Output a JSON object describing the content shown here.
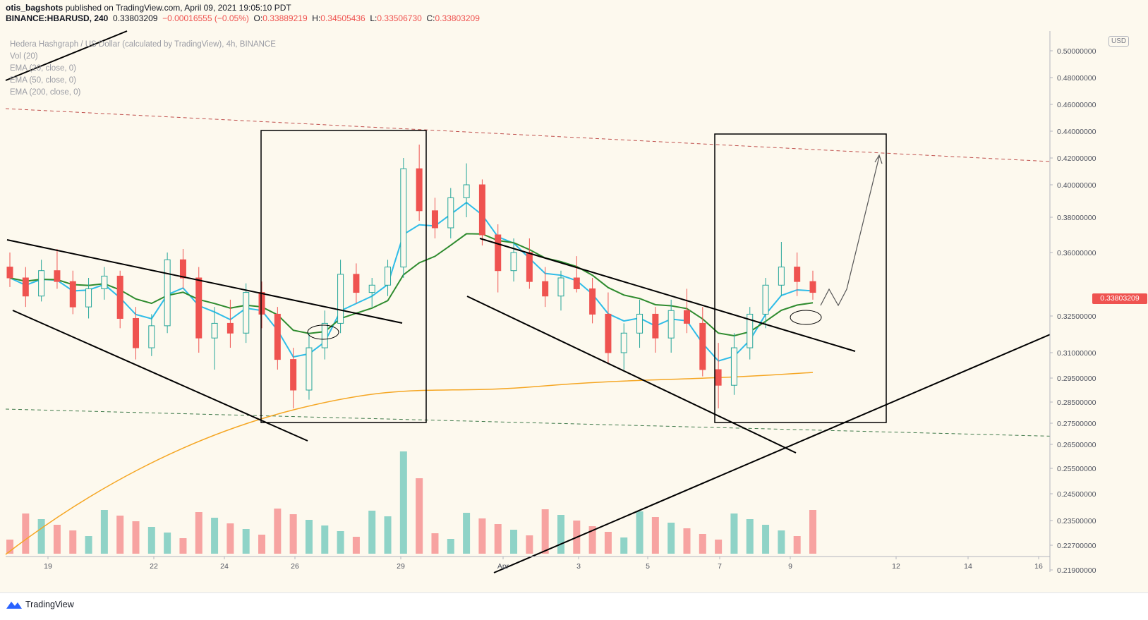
{
  "header": {
    "author": "otis_bagshots",
    "published": "published on TradingView.com, April 09, 2021 19:05:10 PDT",
    "symbol": "BINANCE:HBARUSD, 240",
    "last": "0.33803209",
    "change": "−0.00016555 (−0.05%)",
    "o_label": "O:",
    "o": "0.33889219",
    "h_label": "H:",
    "h": "0.34505436",
    "l_label": "L:",
    "l": "0.33506730",
    "c_label": "C:",
    "c": "0.33803209"
  },
  "legend": {
    "title": "Hedera Hashgraph / US Dollar (calculated by TradingView), 4h, BINANCE",
    "vol": "Vol (20)",
    "ema20": "EMA (20, close, 0)",
    "ema50": "EMA (50, close, 0)",
    "ema200": "EMA (200, close, 0)"
  },
  "currency": "USD",
  "price_tag": "0.33803209",
  "footer": {
    "brand": "TradingView"
  },
  "colors": {
    "up": "#26a69a",
    "down": "#ef5350",
    "ema20": "#2ebce8",
    "ema50": "#2e8b2e",
    "ema200": "#f5a623",
    "vol_up": "#8fd3c7",
    "vol_down": "#f7a3a1",
    "background": "#fdf9ee"
  },
  "chart_data": {
    "type": "candlestick",
    "y_ticks": [
      "0.50000000",
      "0.48000000",
      "0.46000000",
      "0.44000000",
      "0.42000000",
      "0.40000000",
      "0.38000000",
      "0.36000000",
      "0.32500000",
      "0.31000000",
      "0.29500000",
      "0.28500000",
      "0.27500000",
      "0.26500000",
      "0.25500000",
      "0.24500000",
      "0.23500000",
      "0.22700000",
      "0.21900000"
    ],
    "x_ticks": [
      "19",
      "22",
      "24",
      "26",
      "29",
      "Apr",
      "3",
      "5",
      "7",
      "9",
      "12",
      "14",
      "16"
    ],
    "last_price": 0.33803209,
    "ohlc_sample": [
      [
        0.352,
        0.36,
        0.341,
        0.346
      ],
      [
        0.346,
        0.352,
        0.33,
        0.336
      ],
      [
        0.336,
        0.356,
        0.333,
        0.35
      ],
      [
        0.35,
        0.362,
        0.34,
        0.344
      ],
      [
        0.344,
        0.35,
        0.326,
        0.33
      ],
      [
        0.33,
        0.346,
        0.324,
        0.34
      ],
      [
        0.34,
        0.352,
        0.334,
        0.347
      ],
      [
        0.347,
        0.35,
        0.32,
        0.324
      ],
      [
        0.324,
        0.33,
        0.306,
        0.312
      ],
      [
        0.312,
        0.326,
        0.308,
        0.321
      ],
      [
        0.321,
        0.36,
        0.318,
        0.356
      ],
      [
        0.356,
        0.362,
        0.34,
        0.346
      ],
      [
        0.346,
        0.352,
        0.31,
        0.316
      ],
      [
        0.316,
        0.33,
        0.3,
        0.322
      ],
      [
        0.322,
        0.334,
        0.312,
        0.318
      ],
      [
        0.318,
        0.343,
        0.314,
        0.338
      ],
      [
        0.338,
        0.344,
        0.32,
        0.326
      ],
      [
        0.326,
        0.33,
        0.3,
        0.306
      ],
      [
        0.306,
        0.312,
        0.282,
        0.29
      ],
      [
        0.29,
        0.318,
        0.286,
        0.312
      ],
      [
        0.312,
        0.328,
        0.306,
        0.322
      ],
      [
        0.322,
        0.356,
        0.318,
        0.348
      ],
      [
        0.348,
        0.354,
        0.332,
        0.338
      ],
      [
        0.338,
        0.346,
        0.33,
        0.342
      ],
      [
        0.342,
        0.356,
        0.336,
        0.352
      ],
      [
        0.352,
        0.42,
        0.346,
        0.412
      ],
      [
        0.412,
        0.43,
        0.378,
        0.384
      ],
      [
        0.384,
        0.392,
        0.368,
        0.374
      ],
      [
        0.374,
        0.398,
        0.368,
        0.392
      ],
      [
        0.392,
        0.416,
        0.38,
        0.4
      ],
      [
        0.4,
        0.404,
        0.364,
        0.37
      ],
      [
        0.37,
        0.376,
        0.338,
        0.35
      ],
      [
        0.35,
        0.368,
        0.344,
        0.36
      ],
      [
        0.36,
        0.368,
        0.34,
        0.344
      ],
      [
        0.344,
        0.352,
        0.33,
        0.336
      ],
      [
        0.336,
        0.35,
        0.328,
        0.346
      ],
      [
        0.346,
        0.358,
        0.338,
        0.34
      ],
      [
        0.34,
        0.346,
        0.322,
        0.326
      ],
      [
        0.326,
        0.338,
        0.304,
        0.31
      ],
      [
        0.31,
        0.322,
        0.3,
        0.318
      ],
      [
        0.318,
        0.334,
        0.312,
        0.326
      ],
      [
        0.326,
        0.33,
        0.31,
        0.316
      ],
      [
        0.316,
        0.334,
        0.31,
        0.328
      ],
      [
        0.328,
        0.34,
        0.318,
        0.322
      ],
      [
        0.322,
        0.33,
        0.296,
        0.3
      ],
      [
        0.3,
        0.314,
        0.282,
        0.292
      ],
      [
        0.292,
        0.318,
        0.288,
        0.312
      ],
      [
        0.312,
        0.33,
        0.306,
        0.326
      ],
      [
        0.326,
        0.346,
        0.32,
        0.342
      ],
      [
        0.342,
        0.366,
        0.336,
        0.352
      ],
      [
        0.352,
        0.36,
        0.336,
        0.344
      ],
      [
        0.344,
        0.35,
        0.334,
        0.338
      ]
    ]
  }
}
